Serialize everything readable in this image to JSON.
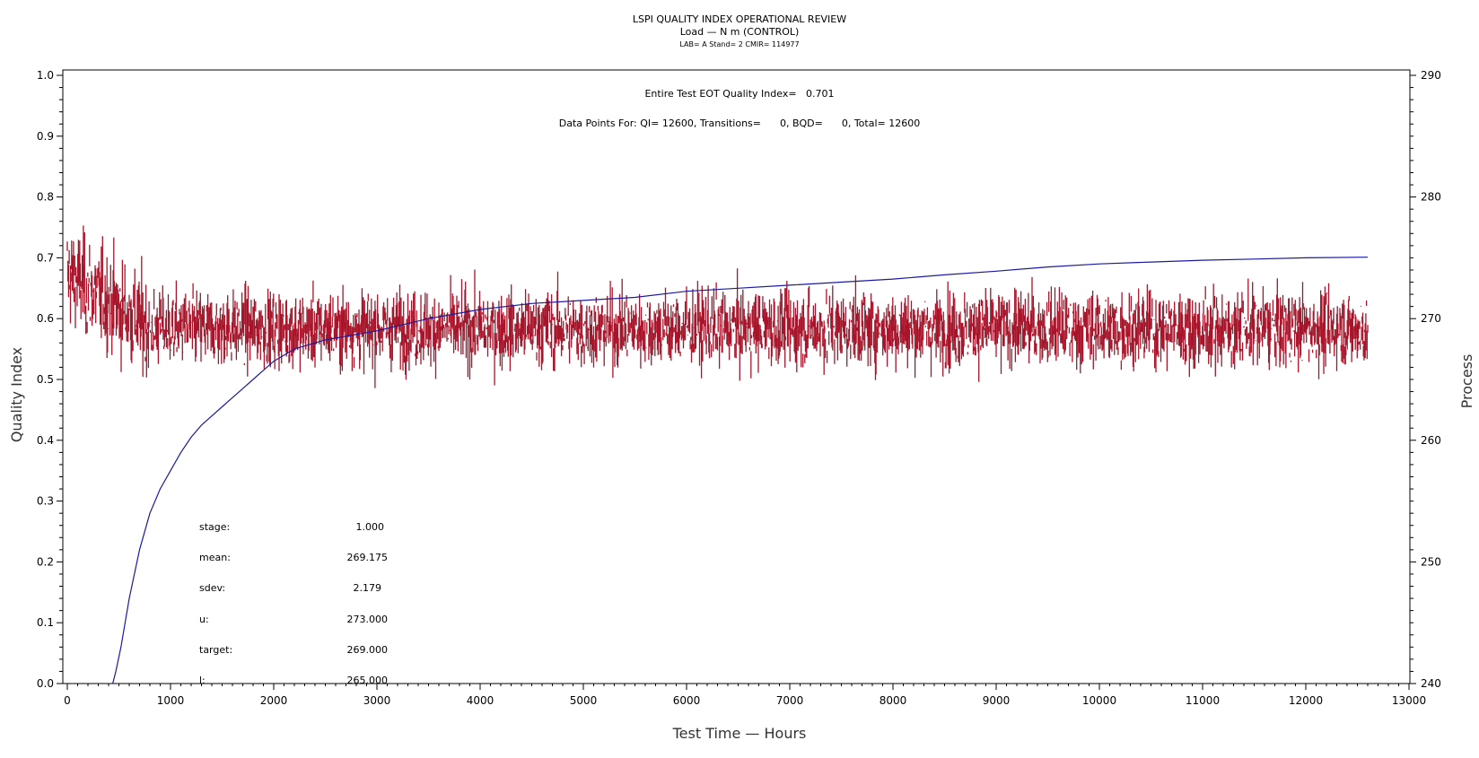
{
  "chart_data": {
    "type": "line",
    "title": "LSPI QUALITY INDEX OPERATIONAL REVIEW",
    "subtitle": "Load — N m (CONTROL)",
    "subtitle2": "LAB= A Stand= 2 CMIR= 114977",
    "xlabel": "Test Time — Hours",
    "ylabel": "Quality Index",
    "y2label": "Process",
    "xlim": [
      0,
      13000
    ],
    "ylim": [
      0.0,
      1.0
    ],
    "y2lim": [
      240,
      290
    ],
    "x_ticks": [
      "0",
      "1000",
      "2000",
      "3000",
      "4000",
      "5000",
      "6000",
      "7000",
      "8000",
      "9000",
      "10000",
      "11000",
      "12000",
      "13000"
    ],
    "y_ticks": [
      "0.0",
      "0.1",
      "0.2",
      "0.3",
      "0.4",
      "0.5",
      "0.6",
      "0.7",
      "0.8",
      "0.9",
      "1.0"
    ],
    "y2_ticks": [
      "240",
      "250",
      "260",
      "270",
      "280",
      "290"
    ],
    "annotations": {
      "eot": "Entire Test EOT Quality Index=   0.701",
      "points": "Data Points For: QI= 12600, Transitions=      0, BQD=      0, Total= 12600"
    },
    "stats": [
      {
        "label": "stage:",
        "value": "1.000"
      },
      {
        "label": "mean:",
        "value": "269.175"
      },
      {
        "label": "sdev:",
        "value": "2.179"
      },
      {
        "label": "u:",
        "value": "273.000"
      },
      {
        "label": "target:",
        "value": "269.000"
      },
      {
        "label": "l:",
        "value": "265.000"
      }
    ],
    "series": [
      {
        "color": "#a8152a",
        "axis": "right",
        "description_values": "process data: noisy around mean",
        "mean": 269.175,
        "sdev": 2.179,
        "x_range": [
          0,
          12600
        ]
      },
      {
        "color": "#1a1aa0",
        "axis": "left",
        "x": [
          440,
          470,
          520,
          600,
          700,
          800,
          900,
          1000,
          1100,
          1200,
          1300,
          1400,
          1500,
          1600,
          1700,
          1800,
          1900,
          2000,
          2200,
          2500,
          3000,
          3500,
          4000,
          4500,
          5000,
          5500,
          6000,
          6500,
          7000,
          7500,
          8000,
          8500,
          9000,
          9500,
          10000,
          10500,
          11000,
          11500,
          12000,
          12600
        ],
        "y": [
          0.0,
          0.02,
          0.06,
          0.14,
          0.22,
          0.28,
          0.32,
          0.35,
          0.38,
          0.405,
          0.425,
          0.44,
          0.455,
          0.47,
          0.485,
          0.5,
          0.515,
          0.53,
          0.55,
          0.565,
          0.58,
          0.6,
          0.615,
          0.625,
          0.63,
          0.635,
          0.645,
          0.65,
          0.655,
          0.66,
          0.665,
          0.672,
          0.678,
          0.685,
          0.69,
          0.693,
          0.696,
          0.698,
          0.7,
          0.701
        ]
      }
    ]
  }
}
